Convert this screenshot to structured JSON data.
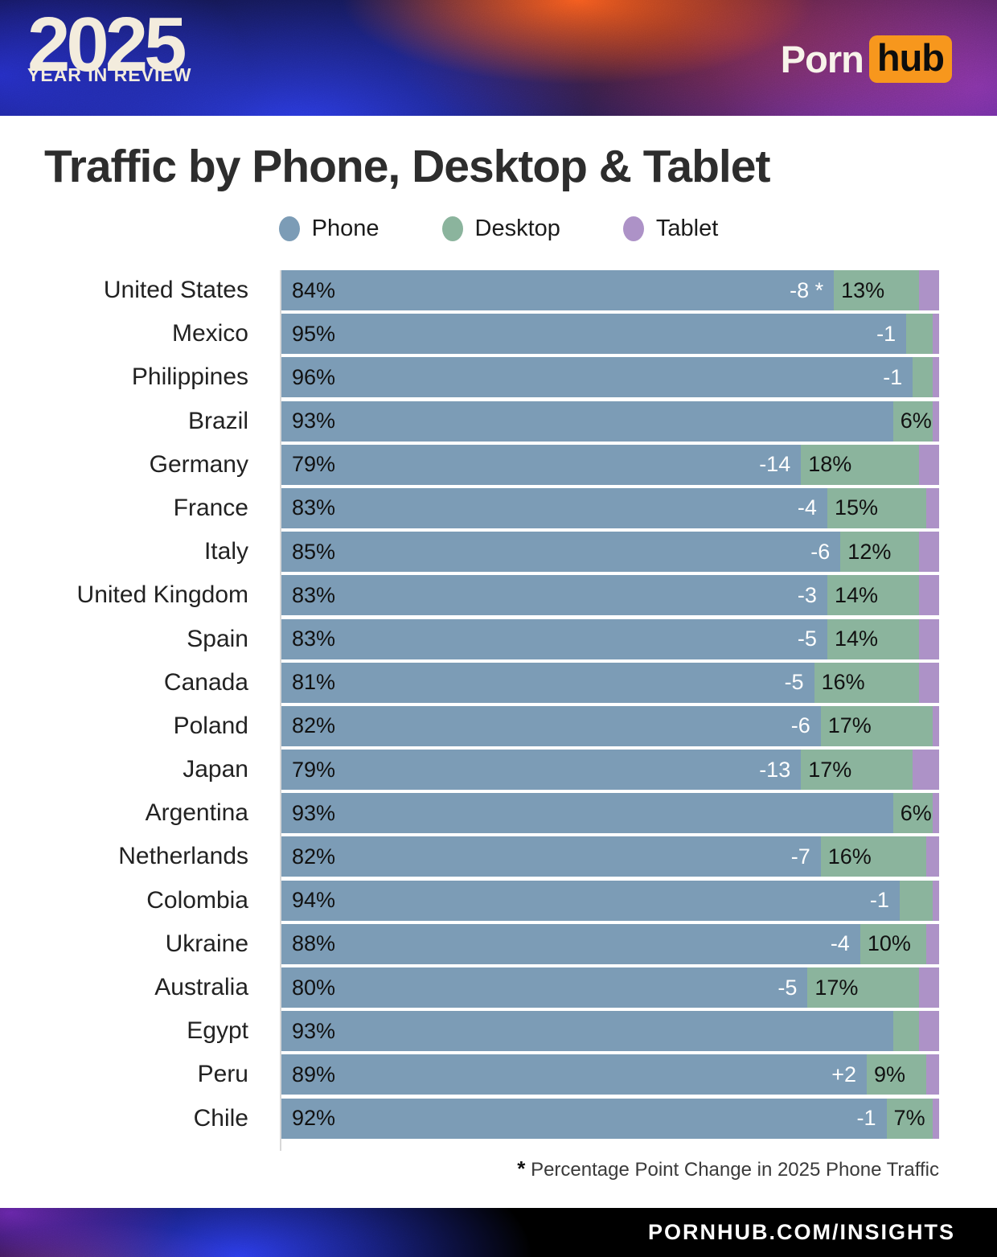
{
  "header": {
    "year": "2025",
    "subtitle": "YEAR IN REVIEW",
    "logo_part1": "Porn",
    "logo_part2": "hub"
  },
  "title": "Traffic by Phone, Desktop & Tablet",
  "legend": [
    {
      "label": "Phone",
      "color": "#7c9cb6"
    },
    {
      "label": "Desktop",
      "color": "#8bb49d"
    },
    {
      "label": "Tablet",
      "color": "#ad92c7"
    }
  ],
  "chart_data": {
    "type": "bar",
    "orientation": "horizontal",
    "stacked": true,
    "unit": "percent of traffic",
    "xlim": [
      0,
      100
    ],
    "categories": [
      "United States",
      "Mexico",
      "Philippines",
      "Brazil",
      "Germany",
      "France",
      "Italy",
      "United Kingdom",
      "Spain",
      "Canada",
      "Poland",
      "Japan",
      "Argentina",
      "Netherlands",
      "Colombia",
      "Ukraine",
      "Australia",
      "Egypt",
      "Peru",
      "Chile"
    ],
    "series": [
      {
        "name": "Phone",
        "color": "#7c9cb6",
        "values": [
          84,
          95,
          96,
          93,
          79,
          83,
          85,
          83,
          83,
          81,
          82,
          79,
          93,
          82,
          94,
          88,
          80,
          93,
          89,
          92
        ]
      },
      {
        "name": "Desktop",
        "color": "#8bb49d",
        "values": [
          13,
          4,
          3,
          6,
          18,
          15,
          12,
          14,
          14,
          16,
          17,
          17,
          6,
          16,
          5,
          10,
          17,
          4,
          9,
          7
        ]
      },
      {
        "name": "Tablet",
        "color": "#ad92c7",
        "values": [
          3,
          1,
          1,
          1,
          3,
          2,
          3,
          3,
          3,
          3,
          1,
          4,
          1,
          2,
          1,
          2,
          3,
          3,
          2,
          1
        ]
      }
    ],
    "phone_labels": [
      "84%",
      "95%",
      "96%",
      "93%",
      "79%",
      "83%",
      "85%",
      "83%",
      "83%",
      "81%",
      "82%",
      "79%",
      "93%",
      "82%",
      "94%",
      "88%",
      "80%",
      "93%",
      "89%",
      "92%"
    ],
    "phone_change_labels": [
      "-8 *",
      "-1",
      "-1",
      "",
      "-14",
      "-4",
      "-6",
      "-3",
      "-5",
      "-5",
      "-6",
      "-13",
      "",
      "-7",
      "-1",
      "-4",
      "-5",
      "",
      "+2",
      "-1"
    ],
    "desktop_labels": [
      "13%",
      "",
      "",
      "6%",
      "18%",
      "15%",
      "12%",
      "14%",
      "14%",
      "16%",
      "17%",
      "17%",
      "6%",
      "16%",
      "",
      "10%",
      "17%",
      "",
      "9%",
      "7%"
    ]
  },
  "footnote": {
    "star": "*",
    "text": " Percentage Point Change in 2025 Phone Traffic"
  },
  "footer": {
    "url": "PORNHUB.COM/INSIGHTS"
  },
  "colors": {
    "pornhub_orange": "#f7971d",
    "axis_line": "#d8d8d8"
  }
}
